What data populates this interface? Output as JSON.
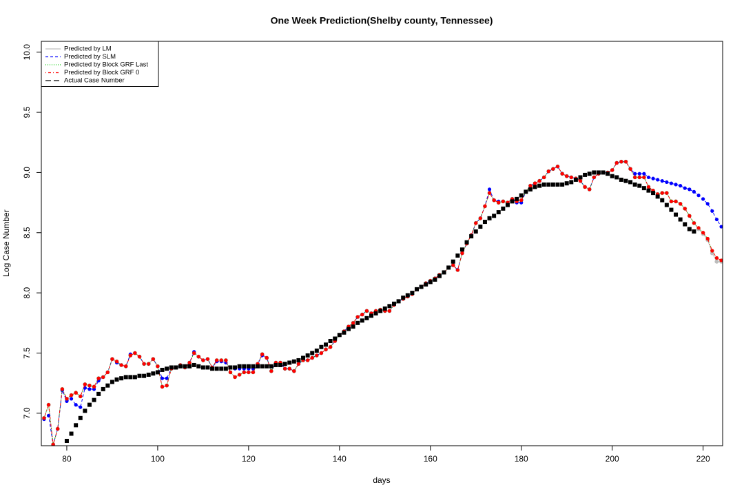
{
  "chart_data": {
    "type": "line",
    "title": "One Week Prediction(Shelby county, Tennessee)",
    "x_label": "days",
    "y_label": "Log Case Number",
    "xlim": [
      74.4,
      224.3
    ],
    "ylim": [
      6.73,
      10.09
    ],
    "xticks": [
      80,
      100,
      120,
      140,
      160,
      180,
      200,
      220
    ],
    "yticks": [
      {
        "value": 7,
        "label": "7.0"
      },
      7.5,
      {
        "value": 8,
        "label": "8.0"
      },
      8.5,
      {
        "value": 9,
        "label": "9.0"
      },
      9.5,
      {
        "value": 10,
        "label": "10.0"
      }
    ],
    "legend": "top-left",
    "x": [
      75,
      76,
      77,
      78,
      79,
      80,
      81,
      82,
      83,
      84,
      85,
      86,
      87,
      88,
      89,
      90,
      91,
      92,
      93,
      94,
      95,
      96,
      97,
      98,
      99,
      100,
      101,
      102,
      103,
      104,
      105,
      106,
      107,
      108,
      109,
      110,
      111,
      112,
      113,
      114,
      115,
      116,
      117,
      118,
      119,
      120,
      121,
      122,
      123,
      124,
      125,
      126,
      127,
      128,
      129,
      130,
      131,
      132,
      133,
      134,
      135,
      136,
      137,
      138,
      139,
      140,
      141,
      142,
      143,
      144,
      145,
      146,
      147,
      148,
      149,
      150,
      151,
      152,
      153,
      154,
      155,
      156,
      157,
      158,
      159,
      160,
      161,
      162,
      163,
      164,
      165,
      166,
      167,
      168,
      169,
      170,
      171,
      172,
      173,
      174,
      175,
      176,
      177,
      178,
      179,
      180,
      181,
      182,
      183,
      184,
      185,
      186,
      187,
      188,
      189,
      190,
      191,
      192,
      193,
      194,
      195,
      196,
      197,
      198,
      199,
      200,
      201,
      202,
      203,
      204,
      205,
      206,
      207,
      208,
      209,
      210,
      211,
      212,
      213,
      214,
      215,
      216,
      217,
      218,
      219,
      220,
      221,
      222,
      223,
      224
    ],
    "series": [
      {
        "name": "Predicted by LM",
        "color": "#bdbdbd",
        "linestyle": "solid",
        "marker": "circle",
        "values": [
          6.96,
          7.07,
          6.74,
          6.87,
          7.2,
          7.12,
          7.15,
          7.17,
          7.14,
          7.24,
          7.23,
          7.22,
          7.29,
          7.3,
          7.34,
          7.45,
          7.43,
          7.4,
          7.39,
          7.48,
          7.5,
          7.47,
          7.41,
          7.41,
          7.45,
          7.39,
          7.22,
          7.23,
          7.37,
          7.38,
          7.4,
          7.38,
          7.42,
          7.5,
          7.47,
          7.44,
          7.45,
          7.38,
          7.44,
          7.44,
          7.44,
          7.34,
          7.3,
          7.32,
          7.34,
          7.34,
          7.34,
          7.41,
          7.49,
          7.46,
          7.35,
          7.42,
          7.42,
          7.37,
          7.37,
          7.35,
          7.41,
          7.44,
          7.44,
          7.46,
          7.48,
          7.5,
          7.53,
          7.55,
          7.6,
          7.65,
          7.68,
          7.72,
          7.75,
          7.8,
          7.82,
          7.85,
          7.83,
          7.85,
          7.86,
          7.85,
          7.85,
          7.9,
          7.93,
          7.95,
          7.97,
          7.99,
          8.03,
          8.05,
          8.08,
          8.1,
          8.12,
          8.15,
          8.17,
          8.21,
          8.23,
          8.19,
          8.33,
          8.41,
          8.48,
          8.58,
          8.62,
          8.72,
          8.83,
          8.77,
          8.75,
          8.76,
          8.75,
          8.78,
          8.76,
          8.77,
          8.84,
          8.89,
          8.91,
          8.93,
          8.96,
          9.01,
          9.03,
          9.05,
          8.99,
          8.97,
          8.96,
          8.95,
          8.93,
          8.88,
          8.86,
          8.96,
          8.99,
          9.0,
          9.0,
          9.02,
          9.08,
          9.09,
          9.09,
          9.03,
          8.96,
          8.96,
          8.96,
          8.88,
          8.85,
          8.82,
          8.83,
          8.83,
          8.76,
          8.76,
          8.74,
          8.7,
          8.64,
          8.58,
          8.53,
          8.49,
          8.44,
          8.33,
          8.26,
          8.26
        ]
      },
      {
        "name": "Predicted by SLM",
        "color": "#0000ff",
        "linestyle": "dashed",
        "marker": "circle",
        "values": [
          6.95,
          6.98,
          6.74,
          6.87,
          7.19,
          7.1,
          7.12,
          7.07,
          7.05,
          7.21,
          7.2,
          7.2,
          7.27,
          7.3,
          7.34,
          7.45,
          7.42,
          7.4,
          7.39,
          7.49,
          7.5,
          7.47,
          7.41,
          7.41,
          7.45,
          7.39,
          7.29,
          7.29,
          7.37,
          7.38,
          7.4,
          7.38,
          7.42,
          7.51,
          7.47,
          7.44,
          7.45,
          7.38,
          7.43,
          7.43,
          7.42,
          7.38,
          7.37,
          7.37,
          7.37,
          7.37,
          7.37,
          7.41,
          7.48,
          7.46,
          7.35,
          7.42,
          7.42,
          7.37,
          7.37,
          7.35,
          7.41,
          7.44,
          7.44,
          7.46,
          7.48,
          7.5,
          7.53,
          7.55,
          7.6,
          7.65,
          7.68,
          7.72,
          7.75,
          7.8,
          7.82,
          7.85,
          7.83,
          7.85,
          7.86,
          7.85,
          7.85,
          7.9,
          7.93,
          7.95,
          7.97,
          7.99,
          8.03,
          8.05,
          8.08,
          8.1,
          8.12,
          8.15,
          8.17,
          8.21,
          8.23,
          8.19,
          8.33,
          8.41,
          8.48,
          8.58,
          8.62,
          8.72,
          8.86,
          8.77,
          8.76,
          8.76,
          8.75,
          8.78,
          8.75,
          8.75,
          8.84,
          8.89,
          8.91,
          8.93,
          8.96,
          9.01,
          9.03,
          9.05,
          8.99,
          8.97,
          8.96,
          8.95,
          8.93,
          8.88,
          8.86,
          8.96,
          8.99,
          9.0,
          9.0,
          9.02,
          9.08,
          9.09,
          9.09,
          9.03,
          8.99,
          8.99,
          8.99,
          8.96,
          8.95,
          8.94,
          8.93,
          8.92,
          8.91,
          8.9,
          8.89,
          8.87,
          8.86,
          8.84,
          8.81,
          8.78,
          8.74,
          8.68,
          8.61,
          8.55
        ]
      },
      {
        "name": "Predicted by Block GRF Last",
        "color": "#00cc00",
        "linestyle": "dotted",
        "marker": "circle",
        "values": [
          6.96,
          7.07,
          6.74,
          6.87,
          7.2,
          7.12,
          7.15,
          7.17,
          7.14,
          7.24,
          7.23,
          7.22,
          7.29,
          7.3,
          7.34,
          7.45,
          7.43,
          7.4,
          7.39,
          7.48,
          7.5,
          7.47,
          7.41,
          7.41,
          7.45,
          7.39,
          7.22,
          7.23,
          7.37,
          7.38,
          7.4,
          7.38,
          7.42,
          7.5,
          7.47,
          7.44,
          7.45,
          7.38,
          7.44,
          7.44,
          7.44,
          7.34,
          7.3,
          7.32,
          7.34,
          7.34,
          7.34,
          7.41,
          7.49,
          7.46,
          7.35,
          7.42,
          7.42,
          7.37,
          7.37,
          7.35,
          7.41,
          7.44,
          7.44,
          7.46,
          7.48,
          7.5,
          7.53,
          7.55,
          7.6,
          7.65,
          7.68,
          7.72,
          7.75,
          7.8,
          7.82,
          7.85,
          7.83,
          7.85,
          7.86,
          7.85,
          7.85,
          7.9,
          7.93,
          7.95,
          7.97,
          7.99,
          8.03,
          8.05,
          8.08,
          8.1,
          8.12,
          8.15,
          8.17,
          8.21,
          8.23,
          8.19,
          8.33,
          8.41,
          8.48,
          8.58,
          8.62,
          8.72,
          8.83,
          8.77,
          8.75,
          8.76,
          8.75,
          8.78,
          8.76,
          8.77,
          8.84,
          8.89,
          8.91,
          8.93,
          8.96,
          9.01,
          9.03,
          9.05,
          8.99,
          8.97,
          8.96,
          8.95,
          8.93,
          8.88,
          8.86,
          8.96,
          8.99,
          9.0,
          9.0,
          9.02,
          9.08,
          9.09,
          9.09,
          9.03,
          8.96,
          8.96,
          8.96,
          8.88,
          8.85,
          8.82,
          8.83,
          8.83,
          8.76,
          8.76,
          8.74,
          8.7,
          8.64,
          8.58,
          8.54,
          8.5,
          8.45,
          8.35,
          8.29,
          8.27
        ]
      },
      {
        "name": "Predicted by Block GRF 0",
        "color": "#ff0000",
        "linestyle": "dashdot",
        "marker": "circle",
        "values": [
          6.96,
          7.07,
          6.74,
          6.87,
          7.2,
          7.12,
          7.15,
          7.17,
          7.14,
          7.24,
          7.23,
          7.22,
          7.29,
          7.3,
          7.34,
          7.45,
          7.43,
          7.4,
          7.39,
          7.48,
          7.5,
          7.47,
          7.41,
          7.41,
          7.45,
          7.39,
          7.22,
          7.23,
          7.37,
          7.38,
          7.4,
          7.38,
          7.42,
          7.5,
          7.47,
          7.44,
          7.45,
          7.38,
          7.44,
          7.44,
          7.44,
          7.34,
          7.3,
          7.32,
          7.34,
          7.34,
          7.34,
          7.41,
          7.49,
          7.46,
          7.35,
          7.42,
          7.42,
          7.37,
          7.37,
          7.35,
          7.41,
          7.44,
          7.44,
          7.46,
          7.48,
          7.5,
          7.53,
          7.55,
          7.6,
          7.65,
          7.68,
          7.72,
          7.75,
          7.8,
          7.82,
          7.85,
          7.83,
          7.85,
          7.86,
          7.85,
          7.85,
          7.9,
          7.93,
          7.95,
          7.97,
          7.99,
          8.03,
          8.05,
          8.08,
          8.1,
          8.12,
          8.15,
          8.17,
          8.21,
          8.23,
          8.19,
          8.33,
          8.41,
          8.48,
          8.58,
          8.62,
          8.72,
          8.83,
          8.77,
          8.75,
          8.76,
          8.75,
          8.78,
          8.76,
          8.77,
          8.84,
          8.89,
          8.91,
          8.93,
          8.96,
          9.01,
          9.03,
          9.05,
          8.99,
          8.97,
          8.96,
          8.95,
          8.93,
          8.88,
          8.86,
          8.96,
          8.99,
          9.0,
          9.0,
          9.02,
          9.08,
          9.09,
          9.09,
          9.03,
          8.96,
          8.96,
          8.96,
          8.88,
          8.85,
          8.82,
          8.83,
          8.83,
          8.76,
          8.76,
          8.74,
          8.7,
          8.64,
          8.58,
          8.54,
          8.5,
          8.45,
          8.35,
          8.29,
          8.27
        ]
      },
      {
        "name": "Actual Case Number",
        "color": "#000000",
        "linestyle": "longdash",
        "marker": "square",
        "values": [
          null,
          null,
          null,
          null,
          null,
          6.77,
          6.83,
          6.9,
          6.96,
          7.02,
          7.07,
          7.11,
          7.16,
          7.2,
          7.23,
          7.26,
          7.28,
          7.29,
          7.3,
          7.3,
          7.3,
          7.31,
          7.31,
          7.32,
          7.33,
          7.34,
          7.36,
          7.37,
          7.38,
          7.38,
          7.39,
          7.39,
          7.39,
          7.4,
          7.39,
          7.38,
          7.38,
          7.37,
          7.37,
          7.37,
          7.37,
          7.38,
          7.38,
          7.39,
          7.39,
          7.39,
          7.39,
          7.39,
          7.39,
          7.39,
          7.39,
          7.4,
          7.4,
          7.41,
          7.42,
          7.43,
          7.44,
          7.46,
          7.48,
          7.5,
          7.52,
          7.55,
          7.57,
          7.6,
          7.62,
          7.65,
          7.67,
          7.7,
          7.72,
          7.75,
          7.77,
          7.79,
          7.81,
          7.83,
          7.85,
          7.87,
          7.89,
          7.91,
          7.93,
          7.96,
          7.98,
          8.0,
          8.03,
          8.05,
          8.07,
          8.09,
          8.11,
          8.14,
          8.17,
          8.21,
          8.26,
          8.31,
          8.36,
          8.42,
          8.47,
          8.51,
          8.55,
          8.59,
          8.62,
          8.64,
          8.67,
          8.7,
          8.73,
          8.76,
          8.78,
          8.81,
          8.84,
          8.86,
          8.88,
          8.89,
          8.9,
          8.9,
          8.9,
          8.9,
          8.9,
          8.91,
          8.92,
          8.94,
          8.96,
          8.98,
          8.99,
          9.0,
          9.0,
          9.0,
          8.99,
          8.97,
          8.96,
          8.94,
          8.93,
          8.92,
          8.9,
          8.89,
          8.87,
          8.85,
          8.83,
          8.8,
          8.77,
          8.73,
          8.69,
          8.65,
          8.61,
          8.57,
          8.53,
          8.51,
          null,
          null,
          null,
          null,
          null,
          null
        ]
      }
    ]
  }
}
